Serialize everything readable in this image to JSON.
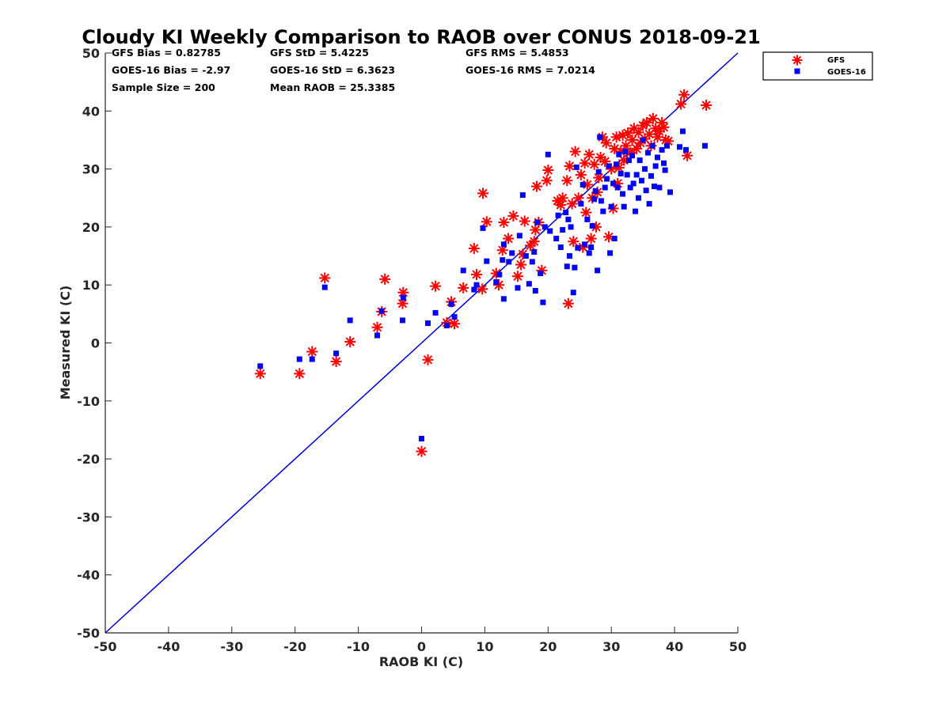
{
  "chart_data": {
    "type": "scatter",
    "title": "Cloudy KI Weekly Comparison to RAOB over CONUS 2018-09-21",
    "xlabel": "RAOB KI (C)",
    "ylabel": "Measured KI (C)",
    "xlim": [
      -50,
      50
    ],
    "ylim": [
      -50,
      50
    ],
    "xticks": [
      -50,
      -40,
      -30,
      -20,
      -10,
      0,
      10,
      20,
      30,
      40,
      50
    ],
    "yticks": [
      -50,
      -40,
      -30,
      -20,
      -10,
      0,
      10,
      20,
      30,
      40,
      50
    ],
    "grid": false,
    "legend_position": "top-right, outside plot",
    "stats": {
      "gfs_bias": "GFS Bias = 0.82785",
      "gfs_std": "GFS StD = 5.4225",
      "gfs_rms": "GFS RMS = 5.4853",
      "goes_bias": "GOES-16 Bias = -2.97",
      "goes_std": "GOES-16 StD = 6.3623",
      "goes_rms": "GOES-16 RMS = 7.0214",
      "sample_size": "Sample Size = 200",
      "mean_raob": "Mean RAOB = 25.3385"
    },
    "reference_line": {
      "x": [
        -50,
        50
      ],
      "y": [
        -50,
        50
      ],
      "color": "#0000cc"
    },
    "series": [
      {
        "name": "GFS",
        "marker": "asterisk",
        "color": "#ff0000",
        "points": [
          [
            -25.5,
            -5.3
          ],
          [
            -19.3,
            -5.3
          ],
          [
            -17.3,
            -1.5
          ],
          [
            -15.3,
            11.2
          ],
          [
            -13.5,
            -3.2
          ],
          [
            -11.3,
            0.2
          ],
          [
            -7,
            2.7
          ],
          [
            -6.3,
            5.4
          ],
          [
            -5.8,
            11
          ],
          [
            -3,
            6.8
          ],
          [
            -2.9,
            8.7
          ],
          [
            1,
            -2.9
          ],
          [
            0,
            -18.7
          ],
          [
            2.2,
            9.8
          ],
          [
            4,
            3.5
          ],
          [
            4.7,
            7.1
          ],
          [
            5.2,
            3.3
          ],
          [
            6.6,
            9.5
          ],
          [
            8.3,
            16.3
          ],
          [
            8.7,
            11.8
          ],
          [
            9.6,
            9.3
          ],
          [
            9.7,
            25.8
          ],
          [
            10.3,
            20.9
          ],
          [
            11.8,
            12
          ],
          [
            12.2,
            10
          ],
          [
            12.8,
            16
          ],
          [
            13,
            20.8
          ],
          [
            13.7,
            18
          ],
          [
            14.5,
            21.9
          ],
          [
            15.2,
            11.5
          ],
          [
            15.7,
            13.5
          ],
          [
            16,
            15.3
          ],
          [
            16.3,
            21
          ],
          [
            17.2,
            16.8
          ],
          [
            17.8,
            17.5
          ],
          [
            18,
            19.5
          ],
          [
            18.2,
            27
          ],
          [
            18.5,
            20.8
          ],
          [
            19,
            12.5
          ],
          [
            19.8,
            28
          ],
          [
            20,
            29.8
          ],
          [
            21.5,
            24.5
          ],
          [
            22,
            23.8
          ],
          [
            22.3,
            25
          ],
          [
            23,
            28
          ],
          [
            23.2,
            6.8
          ],
          [
            23.4,
            30.5
          ],
          [
            23.8,
            24
          ],
          [
            24,
            17.5
          ],
          [
            24.3,
            33
          ],
          [
            24.8,
            25
          ],
          [
            25.2,
            29
          ],
          [
            25.5,
            16.5
          ],
          [
            25.8,
            31
          ],
          [
            26,
            22.5
          ],
          [
            26.2,
            27.3
          ],
          [
            26.5,
            32.5
          ],
          [
            26.8,
            18
          ],
          [
            27,
            25
          ],
          [
            27.3,
            30.8
          ],
          [
            27.6,
            20
          ],
          [
            27.8,
            26
          ],
          [
            28,
            28.5
          ],
          [
            28.3,
            32
          ],
          [
            28.6,
            35.5
          ],
          [
            29,
            31.3
          ],
          [
            29.2,
            34.5
          ],
          [
            29.6,
            18.3
          ],
          [
            30,
            30
          ],
          [
            30.3,
            23.2
          ],
          [
            30.5,
            33.5
          ],
          [
            30.8,
            35.5
          ],
          [
            31,
            27.5
          ],
          [
            31.2,
            30.2
          ],
          [
            31.5,
            33
          ],
          [
            31.8,
            35.8
          ],
          [
            32,
            31.5
          ],
          [
            32.3,
            34
          ],
          [
            32.6,
            36.2
          ],
          [
            33,
            32.8
          ],
          [
            33.3,
            35
          ],
          [
            33.6,
            37
          ],
          [
            34,
            33.5
          ],
          [
            34.3,
            36.3
          ],
          [
            34.6,
            34.5
          ],
          [
            35,
            37.5
          ],
          [
            35.3,
            35.2
          ],
          [
            35.6,
            38
          ],
          [
            36,
            36
          ],
          [
            36.3,
            34
          ],
          [
            36.6,
            38.7
          ],
          [
            37,
            37
          ],
          [
            37.3,
            35.5
          ],
          [
            37.6,
            36.5
          ],
          [
            38,
            38
          ],
          [
            38.3,
            37.2
          ],
          [
            38.6,
            35
          ],
          [
            39,
            34.8
          ],
          [
            41,
            41.2
          ],
          [
            41.5,
            42.8
          ],
          [
            42,
            32.3
          ],
          [
            45,
            41
          ]
        ]
      },
      {
        "name": "GOES-16",
        "marker": "square",
        "color": "#0000ff",
        "points": [
          [
            -25.5,
            -4
          ],
          [
            -19.3,
            -2.8
          ],
          [
            -17.3,
            -2.8
          ],
          [
            -15.3,
            9.6
          ],
          [
            -13.5,
            -1.8
          ],
          [
            -11.3,
            3.9
          ],
          [
            -7,
            1.3
          ],
          [
            -6.3,
            5.5
          ],
          [
            -3,
            3.9
          ],
          [
            -2.9,
            7.8
          ],
          [
            0,
            -16.5
          ],
          [
            1,
            3.4
          ],
          [
            2.2,
            5.2
          ],
          [
            4,
            3
          ],
          [
            4.7,
            6.7
          ],
          [
            5.2,
            4.5
          ],
          [
            6.6,
            12.5
          ],
          [
            8.3,
            9.2
          ],
          [
            8.7,
            10
          ],
          [
            9.7,
            19.8
          ],
          [
            10.3,
            14.1
          ],
          [
            11.8,
            10.5
          ],
          [
            12.3,
            11.8
          ],
          [
            12.8,
            14.3
          ],
          [
            13,
            17
          ],
          [
            13,
            7.6
          ],
          [
            13.8,
            14
          ],
          [
            14.3,
            15.5
          ],
          [
            15.2,
            9.5
          ],
          [
            15.5,
            18.5
          ],
          [
            16,
            25.5
          ],
          [
            16.5,
            15
          ],
          [
            17,
            10.2
          ],
          [
            17.5,
            14
          ],
          [
            17.8,
            15.7
          ],
          [
            18,
            9
          ],
          [
            18.3,
            20.8
          ],
          [
            18.8,
            12
          ],
          [
            19.2,
            7
          ],
          [
            19.5,
            20
          ],
          [
            20,
            32.5
          ],
          [
            20.3,
            19.3
          ],
          [
            21.3,
            18
          ],
          [
            21.6,
            22
          ],
          [
            22,
            16.5
          ],
          [
            22.3,
            19.5
          ],
          [
            22.8,
            22.5
          ],
          [
            23,
            13.2
          ],
          [
            23.2,
            21.3
          ],
          [
            23.4,
            15
          ],
          [
            23.6,
            20
          ],
          [
            24,
            8.7
          ],
          [
            24.2,
            13
          ],
          [
            24.5,
            30.3
          ],
          [
            24.7,
            16.4
          ],
          [
            25.2,
            24
          ],
          [
            25.5,
            27.3
          ],
          [
            25.8,
            17
          ],
          [
            26.2,
            21.3
          ],
          [
            26.5,
            15.5
          ],
          [
            26.8,
            16.5
          ],
          [
            27,
            20.2
          ],
          [
            27.3,
            24.8
          ],
          [
            27.5,
            26.2
          ],
          [
            27.8,
            12.5
          ],
          [
            28,
            29.5
          ],
          [
            28.2,
            35.5
          ],
          [
            28.4,
            24.5
          ],
          [
            28.7,
            22.7
          ],
          [
            29,
            26.8
          ],
          [
            29.3,
            28.3
          ],
          [
            29.6,
            30.5
          ],
          [
            29.8,
            15.5
          ],
          [
            30,
            23.5
          ],
          [
            30.3,
            27.5
          ],
          [
            30.5,
            18
          ],
          [
            30.8,
            30.8
          ],
          [
            31,
            26.8
          ],
          [
            31.2,
            32.5
          ],
          [
            31.5,
            29.2
          ],
          [
            31.8,
            25.7
          ],
          [
            32,
            23.5
          ],
          [
            32.2,
            33
          ],
          [
            32.5,
            29
          ],
          [
            32.8,
            31.5
          ],
          [
            33,
            26.8
          ],
          [
            33.3,
            32.3
          ],
          [
            33.5,
            27.5
          ],
          [
            33.8,
            22.7
          ],
          [
            34,
            29
          ],
          [
            34.3,
            25
          ],
          [
            34.5,
            31.5
          ],
          [
            34.8,
            28
          ],
          [
            35,
            35
          ],
          [
            35.3,
            30
          ],
          [
            35.5,
            26.3
          ],
          [
            35.8,
            32.8
          ],
          [
            36,
            24
          ],
          [
            36.3,
            28.8
          ],
          [
            36.5,
            34
          ],
          [
            36.8,
            27
          ],
          [
            37,
            30.5
          ],
          [
            37.3,
            32
          ],
          [
            37.6,
            26.8
          ],
          [
            38,
            33.3
          ],
          [
            38.3,
            31
          ],
          [
            38.5,
            29.8
          ],
          [
            38.8,
            34
          ],
          [
            39.3,
            26
          ],
          [
            40.8,
            33.8
          ],
          [
            41.3,
            36.5
          ],
          [
            41.8,
            33.3
          ],
          [
            44.8,
            34
          ]
        ]
      }
    ]
  }
}
